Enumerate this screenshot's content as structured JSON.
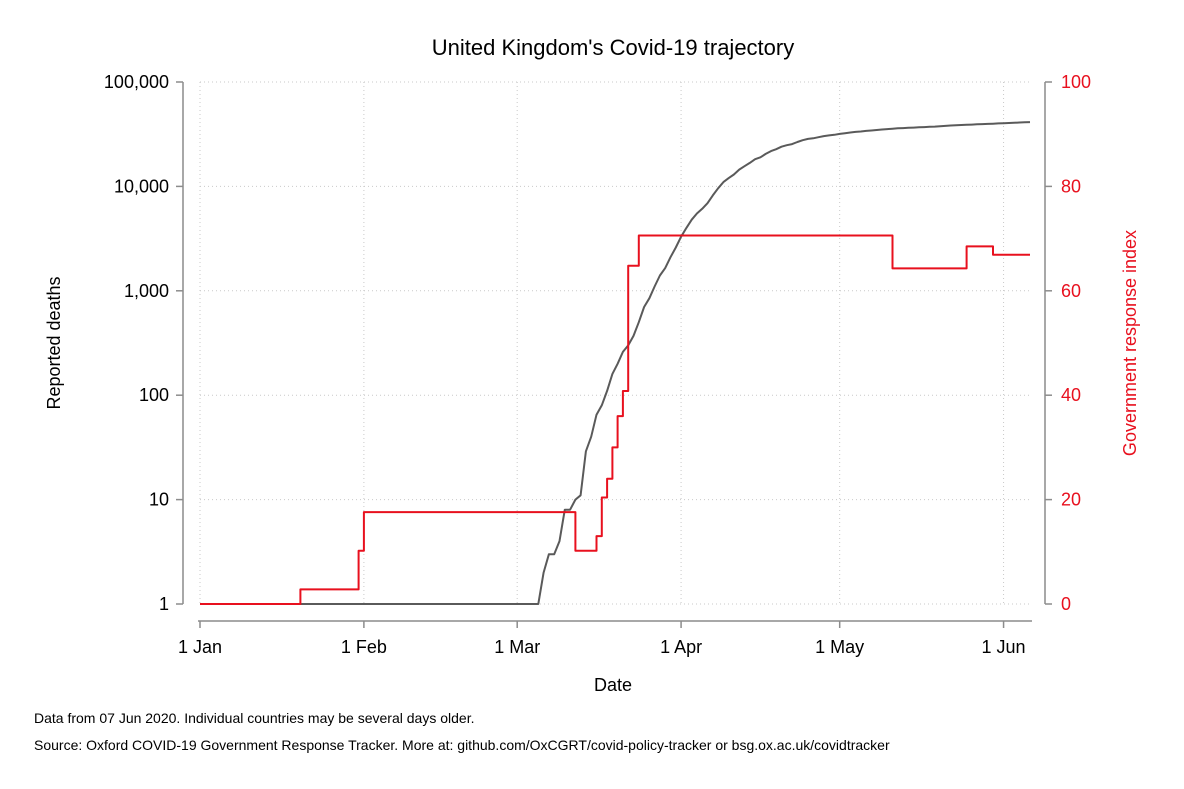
{
  "footnotes": {
    "line1": "Data from 07 Jun 2020. Individual countries may be several days older.",
    "line2": "Source: Oxford COVID-19 Government Response Tracker. More at: github.com/OxCGRT/covid-policy-tracker or bsg.ox.ac.uk/covidtracker"
  },
  "chart_data": {
    "type": "line",
    "title": "United Kingdom's Covid-19 trajectory",
    "xlabel": "Date",
    "ylabel": "Reported deaths",
    "y2label": "Government response index",
    "x_range": [
      "2020-01-01",
      "2020-06-06"
    ],
    "x_ticks": [
      {
        "date": "2020-01-01",
        "label": "1 Jan"
      },
      {
        "date": "2020-02-01",
        "label": "1 Feb"
      },
      {
        "date": "2020-03-01",
        "label": "1 Mar"
      },
      {
        "date": "2020-04-01",
        "label": "1 Apr"
      },
      {
        "date": "2020-05-01",
        "label": "1 May"
      },
      {
        "date": "2020-06-01",
        "label": "1 Jun"
      }
    ],
    "y_scale": "log",
    "ylim": [
      1,
      100000
    ],
    "y_ticks": [
      {
        "value": 1,
        "label": "1"
      },
      {
        "value": 10,
        "label": "10"
      },
      {
        "value": 100,
        "label": "100"
      },
      {
        "value": 1000,
        "label": "1,000"
      },
      {
        "value": 10000,
        "label": "10,000"
      },
      {
        "value": 100000,
        "label": "100,000"
      }
    ],
    "y2lim": [
      0,
      100
    ],
    "y2_ticks": [
      {
        "value": 0,
        "label": "0"
      },
      {
        "value": 20,
        "label": "20"
      },
      {
        "value": 40,
        "label": "40"
      },
      {
        "value": 60,
        "label": "60"
      },
      {
        "value": 80,
        "label": "80"
      },
      {
        "value": 100,
        "label": "100"
      }
    ],
    "grid": true,
    "colors": {
      "deaths": "#5a5a5a",
      "response": "#e8101e",
      "axis": "#8c8c8c",
      "right_axis_text": "#e8101e"
    },
    "series": [
      {
        "axis": "left",
        "points": [
          [
            "2020-01-01",
            1
          ],
          [
            "2020-03-05",
            1
          ],
          [
            "2020-03-06",
            2
          ],
          [
            "2020-03-07",
            3
          ],
          [
            "2020-03-08",
            3
          ],
          [
            "2020-03-09",
            4
          ],
          [
            "2020-03-10",
            8
          ],
          [
            "2020-03-11",
            8
          ],
          [
            "2020-03-12",
            10
          ],
          [
            "2020-03-13",
            11
          ],
          [
            "2020-03-14",
            29
          ],
          [
            "2020-03-15",
            40
          ],
          [
            "2020-03-16",
            65
          ],
          [
            "2020-03-17",
            80
          ],
          [
            "2020-03-18",
            110
          ],
          [
            "2020-03-19",
            160
          ],
          [
            "2020-03-20",
            200
          ],
          [
            "2020-03-21",
            260
          ],
          [
            "2020-03-22",
            300
          ],
          [
            "2020-03-23",
            370
          ],
          [
            "2020-03-24",
            500
          ],
          [
            "2020-03-25",
            700
          ],
          [
            "2020-03-26",
            850
          ],
          [
            "2020-03-27",
            1100
          ],
          [
            "2020-03-28",
            1400
          ],
          [
            "2020-03-29",
            1650
          ],
          [
            "2020-03-30",
            2100
          ],
          [
            "2020-03-31",
            2600
          ],
          [
            "2020-04-01",
            3300
          ],
          [
            "2020-04-02",
            4000
          ],
          [
            "2020-04-03",
            4800
          ],
          [
            "2020-04-04",
            5500
          ],
          [
            "2020-04-05",
            6100
          ],
          [
            "2020-04-06",
            6900
          ],
          [
            "2020-04-07",
            8200
          ],
          [
            "2020-04-08",
            9600
          ],
          [
            "2020-04-09",
            11000
          ],
          [
            "2020-04-10",
            12000
          ],
          [
            "2020-04-11",
            13000
          ],
          [
            "2020-04-12",
            14500
          ],
          [
            "2020-04-13",
            15600
          ],
          [
            "2020-04-14",
            16800
          ],
          [
            "2020-04-15",
            18200
          ],
          [
            "2020-04-16",
            19000
          ],
          [
            "2020-04-17",
            20500
          ],
          [
            "2020-04-18",
            21800
          ],
          [
            "2020-04-19",
            22700
          ],
          [
            "2020-04-20",
            24000
          ],
          [
            "2020-04-21",
            24800
          ],
          [
            "2020-04-22",
            25400
          ],
          [
            "2020-04-23",
            26600
          ],
          [
            "2020-04-24",
            27700
          ],
          [
            "2020-04-25",
            28500
          ],
          [
            "2020-04-26",
            28900
          ],
          [
            "2020-04-27",
            29600
          ],
          [
            "2020-04-28",
            30300
          ],
          [
            "2020-04-29",
            30800
          ],
          [
            "2020-04-30",
            31200
          ],
          [
            "2020-05-01",
            31800
          ],
          [
            "2020-05-02",
            32300
          ],
          [
            "2020-05-03",
            32800
          ],
          [
            "2020-05-04",
            33300
          ],
          [
            "2020-05-05",
            33600
          ],
          [
            "2020-05-06",
            34000
          ],
          [
            "2020-05-07",
            34300
          ],
          [
            "2020-05-08",
            34700
          ],
          [
            "2020-05-09",
            35100
          ],
          [
            "2020-05-10",
            35400
          ],
          [
            "2020-05-11",
            35700
          ],
          [
            "2020-05-12",
            36000
          ],
          [
            "2020-05-13",
            36200
          ],
          [
            "2020-05-14",
            36400
          ],
          [
            "2020-05-15",
            36600
          ],
          [
            "2020-05-16",
            36800
          ],
          [
            "2020-05-17",
            37000
          ],
          [
            "2020-05-18",
            37200
          ],
          [
            "2020-05-19",
            37400
          ],
          [
            "2020-05-20",
            37700
          ],
          [
            "2020-05-21",
            38000
          ],
          [
            "2020-05-22",
            38300
          ],
          [
            "2020-05-23",
            38500
          ],
          [
            "2020-05-24",
            38700
          ],
          [
            "2020-05-25",
            38900
          ],
          [
            "2020-05-26",
            39100
          ],
          [
            "2020-05-27",
            39300
          ],
          [
            "2020-05-28",
            39500
          ],
          [
            "2020-05-29",
            39700
          ],
          [
            "2020-05-30",
            39900
          ],
          [
            "2020-05-31",
            40100
          ],
          [
            "2020-06-01",
            40300
          ],
          [
            "2020-06-02",
            40500
          ],
          [
            "2020-06-03",
            40700
          ],
          [
            "2020-06-04",
            40900
          ],
          [
            "2020-06-05",
            41100
          ],
          [
            "2020-06-06",
            41300
          ]
        ]
      },
      {
        "axis": "right",
        "step": true,
        "points": [
          [
            "2020-01-01",
            0
          ],
          [
            "2020-01-20",
            2.8
          ],
          [
            "2020-01-31",
            10.2
          ],
          [
            "2020-02-01",
            17.6
          ],
          [
            "2020-03-12",
            10.2
          ],
          [
            "2020-03-16",
            13
          ],
          [
            "2020-03-17",
            20.4
          ],
          [
            "2020-03-18",
            24
          ],
          [
            "2020-03-19",
            30
          ],
          [
            "2020-03-20",
            36
          ],
          [
            "2020-03-21",
            40.8
          ],
          [
            "2020-03-22",
            64.8
          ],
          [
            "2020-03-24",
            70.6
          ],
          [
            "2020-05-11",
            64.3
          ],
          [
            "2020-05-25",
            68.5
          ],
          [
            "2020-05-30",
            66.9
          ],
          [
            "2020-06-06",
            66.9
          ]
        ]
      }
    ]
  }
}
